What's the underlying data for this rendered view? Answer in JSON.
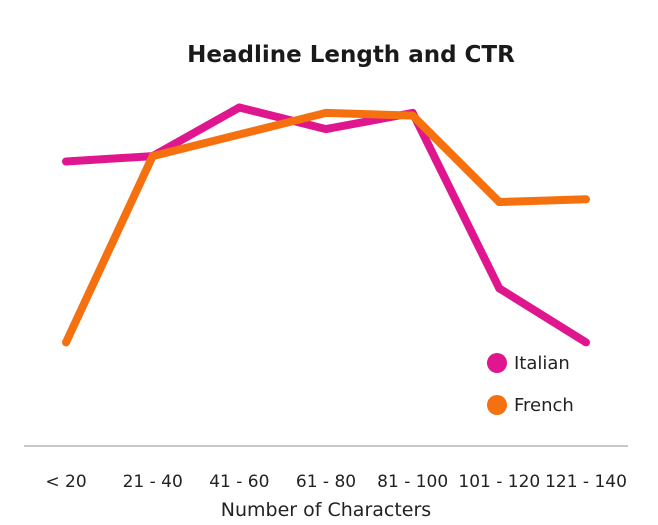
{
  "chart_data": {
    "type": "line",
    "title": "Headline Length and CTR",
    "xlabel": "Number of Characters",
    "ylabel": "",
    "categories": [
      "< 20",
      "21 - 40",
      "41 - 60",
      "61 - 80",
      "81 - 100",
      "101 - 120",
      "121 - 140"
    ],
    "series": [
      {
        "name": "Italian",
        "color": "#e0168f",
        "values": [
          0.55,
          0.57,
          0.75,
          0.67,
          0.73,
          0.08,
          -0.12
        ]
      },
      {
        "name": "French",
        "color": "#f5700f",
        "values": [
          -0.12,
          0.57,
          0.65,
          0.73,
          0.72,
          0.4,
          0.41
        ]
      }
    ],
    "ylim": [
      -0.5,
      1.0
    ],
    "grid": false,
    "legend_position": "bottom-right"
  }
}
